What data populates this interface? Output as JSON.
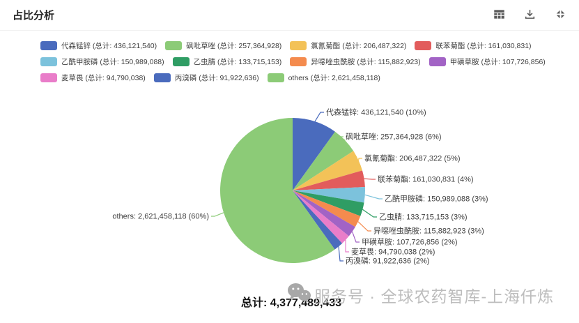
{
  "header": {
    "title": "占比分析",
    "icons": [
      {
        "name": "table-icon"
      },
      {
        "name": "download-icon"
      },
      {
        "name": "collapse-icon"
      }
    ]
  },
  "legend": {
    "total_prefix": "总计"
  },
  "chart_data": {
    "type": "pie",
    "title": "占比分析",
    "legend_position": "top-left",
    "total_value": 4377489433,
    "slices": [
      {
        "name": "代森锰锌",
        "value": 436121540,
        "value_str": "436,121,540",
        "pct": "10%",
        "color": "#4a6bbd"
      },
      {
        "name": "砜吡草唑",
        "value": 257364928,
        "value_str": "257,364,928",
        "pct": "6%",
        "color": "#8ccb77"
      },
      {
        "name": "氯氰菊酯",
        "value": 206487322,
        "value_str": "206,487,322",
        "pct": "5%",
        "color": "#f3c258"
      },
      {
        "name": "联苯菊酯",
        "value": 161030831,
        "value_str": "161,030,831",
        "pct": "4%",
        "color": "#e25c5c"
      },
      {
        "name": "乙酰甲胺磷",
        "value": 150989088,
        "value_str": "150,989,088",
        "pct": "3%",
        "color": "#7cc2dc"
      },
      {
        "name": "乙虫腈",
        "value": 133715153,
        "value_str": "133,715,153",
        "pct": "3%",
        "color": "#2f9d64"
      },
      {
        "name": "异噁唑虫酰胺",
        "value": 115882923,
        "value_str": "115,882,923",
        "pct": "3%",
        "color": "#f48b4e"
      },
      {
        "name": "甲磺草胺",
        "value": 107726856,
        "value_str": "107,726,856",
        "pct": "2%",
        "color": "#a263c5"
      },
      {
        "name": "麦草畏",
        "value": 94790038,
        "value_str": "94,790,038",
        "pct": "2%",
        "color": "#e97dc9"
      },
      {
        "name": "丙溴磷",
        "value": 91922636,
        "value_str": "91,922,636",
        "pct": "2%",
        "color": "#4a6bbd"
      },
      {
        "name": "others",
        "value": 2621458118,
        "value_str": "2,621,458,118",
        "pct": "60%",
        "color": "#8ccb77"
      }
    ]
  },
  "footer": {
    "total": "总计: 4,377,489,433"
  },
  "watermark": {
    "text": "服务号 · 全球农药智库-上海仟炼"
  }
}
